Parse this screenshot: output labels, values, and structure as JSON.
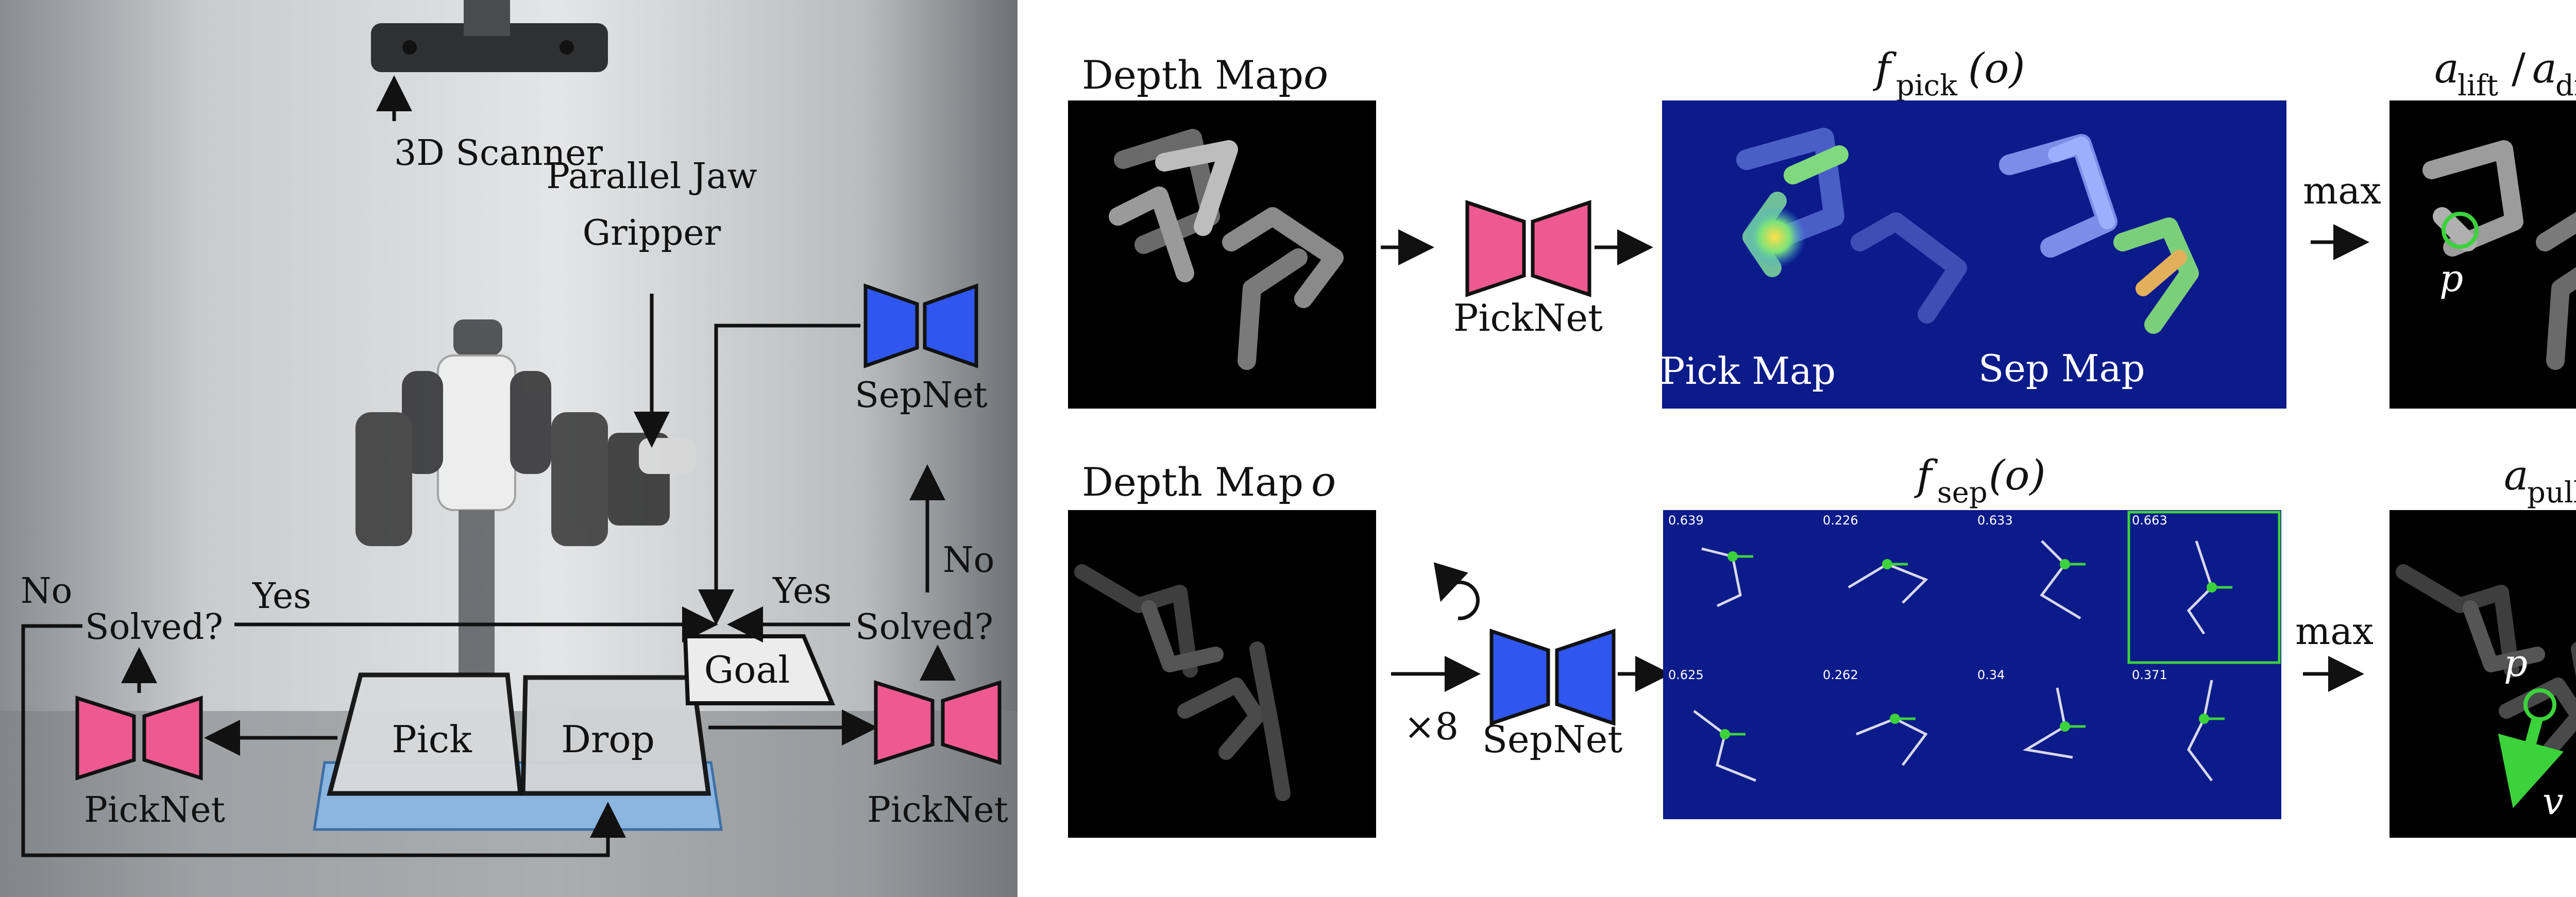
{
  "left_panel": {
    "scanner_label": "3D Scanner",
    "gripper_label_line1": "Parallel Jaw",
    "gripper_label_line2": "Gripper",
    "sepnet_label": "SepNet",
    "no_left": "No",
    "solved_left": "Solved?",
    "yes_left": "Yes",
    "yes_right": "Yes",
    "solved_right": "Solved?",
    "no_right": "No",
    "goal_label": "Goal",
    "pick_label": "Pick",
    "drop_label": "Drop",
    "picknet_left_label": "PickNet",
    "picknet_right_label": "PickNet"
  },
  "top_row": {
    "depth_title": "Depth Map",
    "depth_var": "o",
    "picknet_label": "PickNet",
    "fpick_title": "f",
    "fpick_sub": "pick",
    "fpick_arg": "(o)",
    "pick_map_label": "Pick Map",
    "sep_map_label": "Sep Map",
    "max_label": "max",
    "result_title_a1": "a",
    "result_title_sub1": "lift",
    "result_title_slash": "/",
    "result_title_a2": "a",
    "result_title_sub2": "drop",
    "point_label": "p"
  },
  "bottom_row": {
    "depth_title": "Depth Map",
    "depth_var": "o",
    "repeat_label": "×8",
    "sepnet_label": "SepNet",
    "fsep_title": "f",
    "fsep_sub": "sep",
    "fsep_arg": "(o)",
    "max_label": "max",
    "result_title_a": "a",
    "result_title_sub": "pull",
    "point_label": "p",
    "vector_label": "v",
    "grid_scores": [
      "0.639",
      "0.226",
      "0.633",
      "0.663",
      "0.625",
      "0.262",
      "0.34",
      "0.371"
    ]
  },
  "colors": {
    "picknet": "#ee5a8f",
    "sepnet": "#2f57ef",
    "heatmap_bg": "#0c1b8a",
    "highlight": "#3cd23c"
  }
}
